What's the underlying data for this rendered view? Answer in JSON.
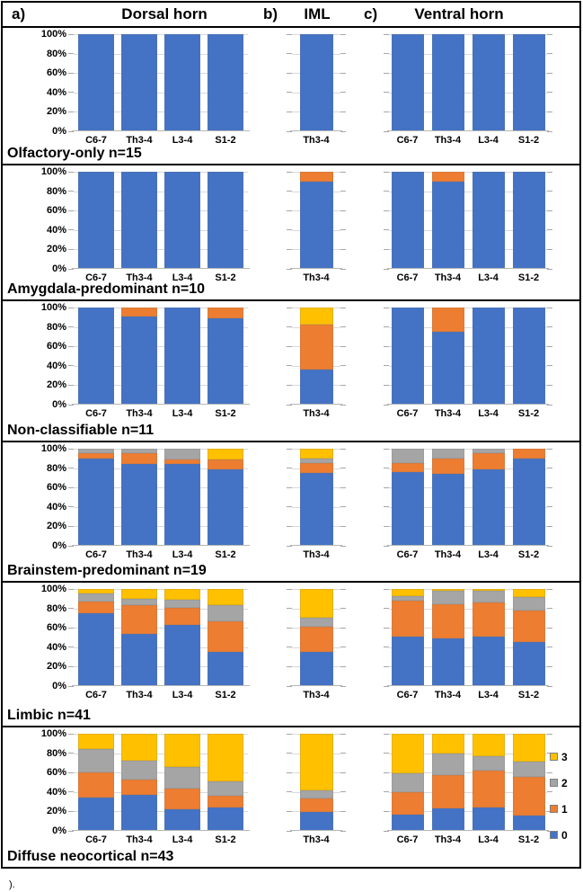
{
  "header": {
    "label_a": "a)",
    "dorsal": "Dorsal horn",
    "label_b": "b)",
    "iml": "IML",
    "label_c": "c)",
    "ventral": "Ventral horn"
  },
  "y_axis_ticks": [
    "100%",
    "80%",
    "60%",
    "40%",
    "20%",
    "0%"
  ],
  "series": [
    {
      "name": "0",
      "color": "#4472C4"
    },
    {
      "name": "1",
      "color": "#ED7D31"
    },
    {
      "name": "2",
      "color": "#A5A5A5"
    },
    {
      "name": "3",
      "color": "#FFC000"
    }
  ],
  "legend": {
    "items": [
      {
        "label": "3",
        "color": "#FFC000"
      },
      {
        "label": "2",
        "color": "#A5A5A5"
      },
      {
        "label": "1",
        "color": "#ED7D31"
      },
      {
        "label": "0",
        "color": "#4472C4"
      }
    ]
  },
  "footer_text": ").",
  "chart_data": [
    {
      "title": "Olfactory-only n=15",
      "type": "bar",
      "stacked_percent": true,
      "ylim": [
        0,
        100
      ],
      "series_order_bottom_to_top": [
        "0",
        "1",
        "2",
        "3"
      ],
      "panels": {
        "dorsal": {
          "categories": [
            "C6-7",
            "Th3-4",
            "L3-4",
            "S1-2"
          ],
          "values": [
            [
              100,
              0,
              0,
              0
            ],
            [
              100,
              0,
              0,
              0
            ],
            [
              100,
              0,
              0,
              0
            ],
            [
              100,
              0,
              0,
              0
            ]
          ]
        },
        "iml": {
          "categories": [
            "Th3-4"
          ],
          "values": [
            [
              100,
              0,
              0,
              0
            ]
          ]
        },
        "ventral": {
          "categories": [
            "C6-7",
            "Th3-4",
            "L3-4",
            "S1-2"
          ],
          "values": [
            [
              100,
              0,
              0,
              0
            ],
            [
              100,
              0,
              0,
              0
            ],
            [
              100,
              0,
              0,
              0
            ],
            [
              100,
              0,
              0,
              0
            ]
          ]
        }
      }
    },
    {
      "title": "Amygdala-predominant n=10",
      "type": "bar",
      "stacked_percent": true,
      "ylim": [
        0,
        100
      ],
      "series_order_bottom_to_top": [
        "0",
        "1",
        "2",
        "3"
      ],
      "panels": {
        "dorsal": {
          "categories": [
            "C6-7",
            "Th3-4",
            "L3-4",
            "S1-2"
          ],
          "values": [
            [
              100,
              0,
              0,
              0
            ],
            [
              100,
              0,
              0,
              0
            ],
            [
              100,
              0,
              0,
              0
            ],
            [
              100,
              0,
              0,
              0
            ]
          ]
        },
        "iml": {
          "categories": [
            "Th3-4"
          ],
          "values": [
            [
              90,
              10,
              0,
              0
            ]
          ]
        },
        "ventral": {
          "categories": [
            "C6-7",
            "Th3-4",
            "L3-4",
            "S1-2"
          ],
          "values": [
            [
              100,
              0,
              0,
              0
            ],
            [
              90,
              10,
              0,
              0
            ],
            [
              100,
              0,
              0,
              0
            ],
            [
              100,
              0,
              0,
              0
            ]
          ]
        }
      }
    },
    {
      "title": "Non-classifiable n=11",
      "type": "bar",
      "stacked_percent": true,
      "ylim": [
        0,
        100
      ],
      "series_order_bottom_to_top": [
        "0",
        "1",
        "2",
        "3"
      ],
      "panels": {
        "dorsal": {
          "categories": [
            "C6-7",
            "Th3-4",
            "L3-4",
            "S1-2"
          ],
          "values": [
            [
              100,
              0,
              0,
              0
            ],
            [
              91,
              9,
              0,
              0
            ],
            [
              100,
              0,
              0,
              0
            ],
            [
              89,
              11,
              0,
              0
            ]
          ]
        },
        "iml": {
          "categories": [
            "Th3-4"
          ],
          "values": [
            [
              36,
              46,
              0,
              18
            ]
          ]
        },
        "ventral": {
          "categories": [
            "C6-7",
            "Th3-4",
            "L3-4",
            "S1-2"
          ],
          "values": [
            [
              100,
              0,
              0,
              0
            ],
            [
              75,
              25,
              0,
              0
            ],
            [
              100,
              0,
              0,
              0
            ],
            [
              100,
              0,
              0,
              0
            ]
          ]
        }
      }
    },
    {
      "title": "Brainstem-predominant n=19",
      "type": "bar",
      "stacked_percent": true,
      "ylim": [
        0,
        100
      ],
      "series_order_bottom_to_top": [
        "0",
        "1",
        "2",
        "3"
      ],
      "panels": {
        "dorsal": {
          "categories": [
            "C6-7",
            "Th3-4",
            "L3-4",
            "S1-2"
          ],
          "values": [
            [
              90,
              5,
              5,
              0
            ],
            [
              84,
              11,
              5,
              0
            ],
            [
              84,
              5,
              11,
              0
            ],
            [
              79,
              10,
              0,
              11
            ]
          ]
        },
        "iml": {
          "categories": [
            "Th3-4"
          ],
          "values": [
            [
              75,
              10,
              5,
              10
            ]
          ]
        },
        "ventral": {
          "categories": [
            "C6-7",
            "Th3-4",
            "L3-4",
            "S1-2"
          ],
          "values": [
            [
              76,
              9,
              15,
              0
            ],
            [
              74,
              16,
              10,
              0
            ],
            [
              79,
              16,
              5,
              0
            ],
            [
              90,
              10,
              0,
              0
            ]
          ]
        }
      }
    },
    {
      "title": "Limbic n=41",
      "type": "bar",
      "stacked_percent": true,
      "ylim": [
        0,
        100
      ],
      "series_order_bottom_to_top": [
        "0",
        "1",
        "2",
        "3"
      ],
      "panels": {
        "dorsal": {
          "categories": [
            "C6-7",
            "Th3-4",
            "L3-4",
            "S1-2"
          ],
          "values": [
            [
              75,
              12,
              8,
              5
            ],
            [
              54,
              29,
              7,
              10
            ],
            [
              63,
              18,
              8,
              11
            ],
            [
              35,
              32,
              16,
              17
            ]
          ]
        },
        "iml": {
          "categories": [
            "Th3-4"
          ],
          "values": [
            [
              35,
              26,
              9,
              30
            ]
          ]
        },
        "ventral": {
          "categories": [
            "C6-7",
            "Th3-4",
            "L3-4",
            "S1-2"
          ],
          "values": [
            [
              51,
              37,
              5,
              7
            ],
            [
              49,
              35,
              14,
              2
            ],
            [
              51,
              35,
              12,
              2
            ],
            [
              45,
              33,
              14,
              8
            ]
          ]
        }
      }
    },
    {
      "title": "Diffuse neocortical n=43",
      "type": "bar",
      "stacked_percent": true,
      "ylim": [
        0,
        100
      ],
      "series_order_bottom_to_top": [
        "0",
        "1",
        "2",
        "3"
      ],
      "panels": {
        "dorsal": {
          "categories": [
            "C6-7",
            "Th3-4",
            "L3-4",
            "S1-2"
          ],
          "values": [
            [
              34,
              26,
              24,
              16
            ],
            [
              37,
              16,
              19,
              28
            ],
            [
              22,
              22,
              22,
              34
            ],
            [
              24,
              12,
              15,
              49
            ]
          ]
        },
        "iml": {
          "categories": [
            "Th3-4"
          ],
          "values": [
            [
              19,
              14,
              9,
              58
            ]
          ]
        },
        "ventral": {
          "categories": [
            "C6-7",
            "Th3-4",
            "L3-4",
            "S1-2"
          ],
          "values": [
            [
              17,
              23,
              19,
              41
            ],
            [
              23,
              34,
              23,
              20
            ],
            [
              24,
              38,
              15,
              23
            ],
            [
              16,
              40,
              15,
              29
            ]
          ]
        }
      }
    }
  ]
}
